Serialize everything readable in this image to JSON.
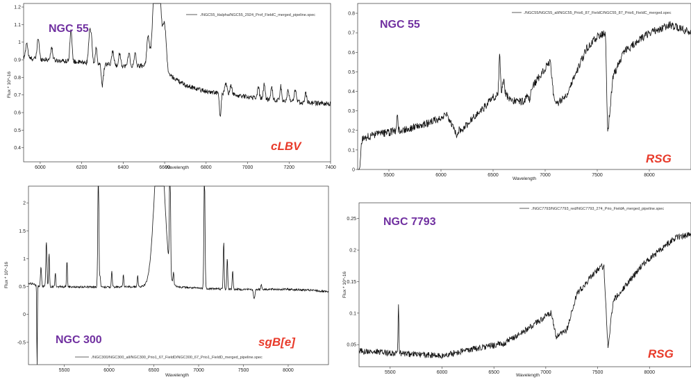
{
  "chart_data": [
    {
      "type": "line",
      "object": "NGC 55",
      "classification": "cLBV",
      "legend": "./NGC55_Halpha/NGC55_2924_Prof_FieldC_merged_pipeline.spec",
      "xlabel": "Wavelength",
      "ylabel": "Flux * 10^-16",
      "xlim": [
        5920,
        7400
      ],
      "ylim": [
        0.32,
        1.22
      ],
      "xticks": [
        6000,
        6200,
        6400,
        6600,
        6800,
        7000,
        7200,
        7400
      ],
      "yticks": [
        0.4,
        0.5,
        0.6,
        0.7,
        0.8,
        0.9,
        1.0,
        1.1,
        1.2
      ],
      "series": [
        {
          "continuum": [
            [
              5920,
              0.91
            ],
            [
              6100,
              0.895
            ],
            [
              6300,
              0.875
            ],
            [
              6450,
              0.86
            ],
            [
              6520,
              0.87
            ],
            [
              6600,
              0.83
            ],
            [
              6700,
              0.755
            ],
            [
              6800,
              0.72
            ],
            [
              6900,
              0.705
            ],
            [
              7000,
              0.69
            ],
            [
              7100,
              0.675
            ],
            [
              7200,
              0.665
            ],
            [
              7300,
              0.655
            ],
            [
              7400,
              0.65
            ]
          ],
          "features": [
            [
              5935,
              0.09,
              5
            ],
            [
              5990,
              0.12,
              5
            ],
            [
              6055,
              0.07,
              5
            ],
            [
              6148,
              0.18,
              5
            ],
            [
              6238,
              0.17,
              5
            ],
            [
              6247,
              0.13,
              4
            ],
            [
              6270,
              0.09,
              4
            ],
            [
              6300,
              -0.12,
              5
            ],
            [
              6350,
              0.08,
              5
            ],
            [
              6383,
              0.07,
              5
            ],
            [
              6428,
              0.08,
              5
            ],
            [
              6458,
              0.07,
              5
            ],
            [
              6520,
              0.16,
              6
            ],
            [
              6563,
              0.9,
              14
            ],
            [
              6600,
              0.25,
              8
            ],
            [
              6868,
              -0.14,
              4
            ],
            [
              6895,
              0.06,
              5
            ],
            [
              6920,
              0.05,
              5
            ],
            [
              7052,
              0.07,
              4
            ],
            [
              7080,
              0.09,
              4
            ],
            [
              7116,
              0.08,
              4
            ],
            [
              7160,
              0.08,
              4
            ],
            [
              7195,
              0.06,
              4
            ],
            [
              7230,
              0.07,
              4
            ],
            [
              7280,
              0.06,
              4
            ]
          ],
          "noise": 0.013
        }
      ]
    },
    {
      "type": "line",
      "object": "NGC 55",
      "classification": "RSG",
      "legend": "./NGC55/NGC55_all/NGC55_Prio6_87_FieldC/NGC55_87_Prio6_FieldC_merged.spec",
      "xlabel": "Wavelength",
      "ylabel": "",
      "xlim": [
        5200,
        8400
      ],
      "ylim": [
        0,
        0.85
      ],
      "xticks": [
        5500,
        6000,
        6500,
        7000,
        7500,
        8000
      ],
      "yticks": [
        0.0,
        0.1,
        0.2,
        0.3,
        0.4,
        0.5,
        0.6,
        0.7,
        0.8
      ],
      "series": [
        {
          "continuum": [
            [
              5220,
              0.0
            ],
            [
              5240,
              0.15
            ],
            [
              5300,
              0.17
            ],
            [
              5500,
              0.19
            ],
            [
              5700,
              0.21
            ],
            [
              5900,
              0.24
            ],
            [
              6050,
              0.28
            ],
            [
              6120,
              0.21
            ],
            [
              6200,
              0.2
            ],
            [
              6300,
              0.26
            ],
            [
              6400,
              0.31
            ],
            [
              6500,
              0.37
            ],
            [
              6600,
              0.39
            ],
            [
              6700,
              0.35
            ],
            [
              6800,
              0.35
            ],
            [
              6900,
              0.44
            ],
            [
              7000,
              0.52
            ],
            [
              7050,
              0.56
            ],
            [
              7080,
              0.38
            ],
            [
              7100,
              0.33
            ],
            [
              7200,
              0.38
            ],
            [
              7300,
              0.5
            ],
            [
              7400,
              0.62
            ],
            [
              7500,
              0.68
            ],
            [
              7580,
              0.7
            ],
            [
              7600,
              0.18
            ],
            [
              7650,
              0.47
            ],
            [
              7750,
              0.6
            ],
            [
              7900,
              0.66
            ],
            [
              8000,
              0.7
            ],
            [
              8100,
              0.72
            ],
            [
              8200,
              0.74
            ],
            [
              8400,
              0.7
            ]
          ],
          "features": [
            [
              5580,
              0.1,
              5
            ],
            [
              6563,
              0.2,
              7
            ],
            [
              6150,
              -0.05,
              8
            ],
            [
              6600,
              0.06,
              10
            ],
            [
              6850,
              -0.04,
              8
            ]
          ],
          "noise": 0.02
        }
      ]
    },
    {
      "type": "line",
      "object": "NGC 300",
      "classification": "sgB[e]",
      "legend": "./NGC300/NGC300_all/NGC300_Prio1_67_FieldD/NGC300_67_Prio1_FieldD_merged_pipeline.spec",
      "xlabel": "Wavelength",
      "ylabel": "Flux * 10^-16",
      "xlim": [
        5100,
        8450
      ],
      "ylim": [
        -0.9,
        2.3
      ],
      "xticks": [
        5500,
        6000,
        6500,
        7000,
        7500,
        8000
      ],
      "yticks": [
        -0.5,
        0.0,
        0.5,
        1.0,
        1.5,
        2.0
      ],
      "series": [
        {
          "continuum": [
            [
              5160,
              0.55
            ],
            [
              5200,
              0.5
            ],
            [
              6000,
              0.49
            ],
            [
              6400,
              0.5
            ],
            [
              6500,
              0.53
            ],
            [
              6700,
              0.5
            ],
            [
              7000,
              0.47
            ],
            [
              7400,
              0.45
            ],
            [
              8000,
              0.45
            ],
            [
              8300,
              0.43
            ],
            [
              8450,
              0.4
            ]
          ],
          "features": [
            [
              5196,
              -1.6,
              3
            ],
            [
              5240,
              0.35,
              6
            ],
            [
              5300,
              0.8,
              6
            ],
            [
              5330,
              0.6,
              5
            ],
            [
              5400,
              0.25,
              5
            ],
            [
              5530,
              0.45,
              5
            ],
            [
              5880,
              2.2,
              6
            ],
            [
              5900,
              0.2,
              5
            ],
            [
              6030,
              0.3,
              5
            ],
            [
              6160,
              0.22,
              5
            ],
            [
              6320,
              0.2,
              5
            ],
            [
              6563,
              2.8,
              55
            ],
            [
              6582,
              0.7,
              10
            ],
            [
              6680,
              2.2,
              6
            ],
            [
              6720,
              0.2,
              5
            ],
            [
              7065,
              2.2,
              6
            ],
            [
              7280,
              0.85,
              5
            ],
            [
              7320,
              0.55,
              5
            ],
            [
              7380,
              0.35,
              5
            ],
            [
              7620,
              -0.18,
              8
            ],
            [
              7700,
              0.1,
              5
            ]
          ],
          "noise": 0.018
        }
      ]
    },
    {
      "type": "line",
      "object": "NGC 7793",
      "classification": "RSG",
      "legend": "./NGC7793/NGC7793_red/NGC7793_274_Prio_FieldA_merged_pipeline.spec",
      "xlabel": "Wavelength",
      "ylabel": "Flux * 10^-16",
      "xlim": [
        5200,
        8400
      ],
      "ylim": [
        0.015,
        0.275
      ],
      "xticks": [
        5500,
        6000,
        6500,
        7000,
        7500,
        8000
      ],
      "yticks": [
        0.05,
        0.1,
        0.15,
        0.2,
        0.25
      ],
      "series": [
        {
          "continuum": [
            [
              5200,
              0.04
            ],
            [
              5500,
              0.037
            ],
            [
              5800,
              0.034
            ],
            [
              6000,
              0.032
            ],
            [
              6200,
              0.04
            ],
            [
              6400,
              0.046
            ],
            [
              6600,
              0.052
            ],
            [
              6800,
              0.072
            ],
            [
              7000,
              0.095
            ],
            [
              7050,
              0.1
            ],
            [
              7100,
              0.062
            ],
            [
              7200,
              0.072
            ],
            [
              7300,
              0.13
            ],
            [
              7400,
              0.15
            ],
            [
              7500,
              0.17
            ],
            [
              7560,
              0.175
            ],
            [
              7600,
              0.045
            ],
            [
              7650,
              0.12
            ],
            [
              7800,
              0.15
            ],
            [
              7950,
              0.18
            ],
            [
              8100,
              0.2
            ],
            [
              8250,
              0.22
            ],
            [
              8400,
              0.225
            ]
          ],
          "features": [
            [
              5580,
              0.075,
              4
            ]
          ],
          "noise": 0.005
        }
      ]
    }
  ]
}
